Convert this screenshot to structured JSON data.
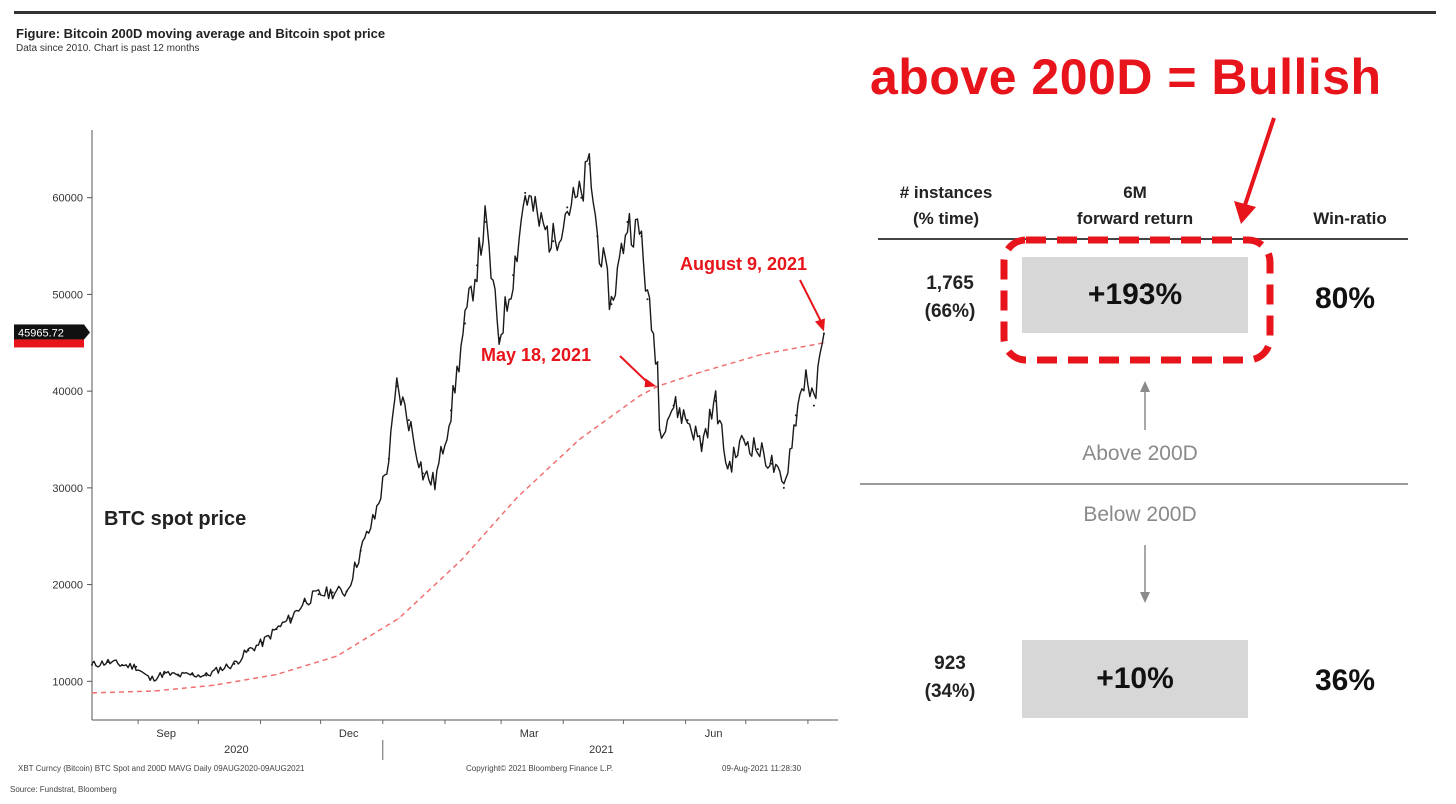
{
  "figure": {
    "title": "Figure: Bitcoin 200D moving average and Bitcoin spot price",
    "subtitle": "Data since 2010.  Chart is past 12 months",
    "footer_left": "XBT Curncy (Bitcoin)  BTC Spot and 200D MAVG   Daily 09AUG2020-09AUG2021",
    "footer_center": "Copyright© 2021 Bloomberg Finance L.P.",
    "footer_right": "09-Aug-2021 11:28:30",
    "source": "Source: Fundstrat, Bloomberg"
  },
  "chart_data": {
    "type": "line",
    "series": [
      {
        "name": "BTC spot price",
        "color": "#1a1a1a",
        "values": [
          [
            "2020-08-09",
            11700
          ],
          [
            "2020-08-17",
            12000
          ],
          [
            "2020-08-24",
            11700
          ],
          [
            "2020-08-31",
            11500
          ],
          [
            "2020-09-07",
            10200
          ],
          [
            "2020-09-14",
            10800
          ],
          [
            "2020-09-21",
            10600
          ],
          [
            "2020-09-28",
            10700
          ],
          [
            "2020-10-05",
            10600
          ],
          [
            "2020-10-12",
            11300
          ],
          [
            "2020-10-19",
            11800
          ],
          [
            "2020-10-26",
            13200
          ],
          [
            "2020-11-02",
            14000
          ],
          [
            "2020-11-09",
            15400
          ],
          [
            "2020-11-16",
            16500
          ],
          [
            "2020-11-23",
            18300
          ],
          [
            "2020-11-30",
            19000
          ],
          [
            "2020-12-07",
            19200
          ],
          [
            "2020-12-14",
            19300
          ],
          [
            "2020-12-21",
            23500
          ],
          [
            "2020-12-28",
            27000
          ],
          [
            "2021-01-04",
            33000
          ],
          [
            "2021-01-08",
            40500
          ],
          [
            "2021-01-14",
            37000
          ],
          [
            "2021-01-21",
            31500
          ],
          [
            "2021-01-27",
            30500
          ],
          [
            "2021-02-04",
            38000
          ],
          [
            "2021-02-11",
            47000
          ],
          [
            "2021-02-17",
            53000
          ],
          [
            "2021-02-21",
            57500
          ],
          [
            "2021-02-28",
            45500
          ],
          [
            "2021-03-07",
            52000
          ],
          [
            "2021-03-13",
            60500
          ],
          [
            "2021-03-20",
            57500
          ],
          [
            "2021-03-27",
            55500
          ],
          [
            "2021-04-03",
            59000
          ],
          [
            "2021-04-10",
            60000
          ],
          [
            "2021-04-14",
            63500
          ],
          [
            "2021-04-18",
            56000
          ],
          [
            "2021-04-25",
            49000
          ],
          [
            "2021-05-03",
            57500
          ],
          [
            "2021-05-10",
            56000
          ],
          [
            "2021-05-13",
            49500
          ],
          [
            "2021-05-18",
            43000
          ],
          [
            "2021-05-19",
            36000
          ],
          [
            "2021-05-26",
            38500
          ],
          [
            "2021-06-02",
            37000
          ],
          [
            "2021-06-09",
            34500
          ],
          [
            "2021-06-16",
            39000
          ],
          [
            "2021-06-22",
            32000
          ],
          [
            "2021-06-30",
            35000
          ],
          [
            "2021-07-07",
            34000
          ],
          [
            "2021-07-14",
            32500
          ],
          [
            "2021-07-20",
            30000
          ],
          [
            "2021-07-26",
            37500
          ],
          [
            "2021-07-31",
            42000
          ],
          [
            "2021-08-04",
            38500
          ],
          [
            "2021-08-09",
            45965.72
          ]
        ]
      },
      {
        "name": "200D MAVG",
        "color": "#f07070",
        "style": "dashed",
        "values": [
          [
            "2020-08-09",
            8800
          ],
          [
            "2020-09-09",
            9000
          ],
          [
            "2020-10-09",
            9600
          ],
          [
            "2020-11-09",
            10700
          ],
          [
            "2020-12-09",
            12600
          ],
          [
            "2021-01-09",
            16500
          ],
          [
            "2021-02-09",
            22500
          ],
          [
            "2021-03-09",
            29000
          ],
          [
            "2021-04-09",
            35000
          ],
          [
            "2021-05-09",
            39500
          ],
          [
            "2021-05-18",
            40500
          ],
          [
            "2021-06-09",
            42000
          ],
          [
            "2021-07-09",
            43800
          ],
          [
            "2021-08-09",
            45000
          ]
        ]
      }
    ],
    "ylim": [
      6000,
      67000
    ],
    "yticks": [
      10000,
      20000,
      30000,
      40000,
      50000,
      60000
    ],
    "x_month_ticks": [
      "Sep",
      "Dec",
      "Mar",
      "Jun"
    ],
    "x_year_labels": [
      "2020",
      "2021"
    ],
    "last_price_label": "45965.72",
    "annotations": [
      {
        "text": "BTC spot price",
        "color": "#222222"
      },
      {
        "text": "May 18, 2021",
        "date": "2021-05-18",
        "value": 40500,
        "color": "#e8141b"
      },
      {
        "text": "August 9, 2021",
        "date": "2021-08-09",
        "value": 45965.72,
        "color": "#e8141b"
      }
    ],
    "grid": false
  },
  "panel": {
    "headline": "above 200D = Bullish",
    "headers": {
      "instances": [
        "# instances",
        "(% time)"
      ],
      "forward_return": [
        "6M",
        "forward return"
      ],
      "win_ratio": "Win-ratio"
    },
    "above": {
      "label": "Above 200D",
      "instances": "1,765",
      "pct_time": "(66%)",
      "return": "+193%",
      "win_ratio": "80%"
    },
    "below": {
      "label": "Below 200D",
      "instances": "923",
      "pct_time": "(34%)",
      "return": "+10%",
      "win_ratio": "36%"
    },
    "accent_color": "#e8141b"
  }
}
